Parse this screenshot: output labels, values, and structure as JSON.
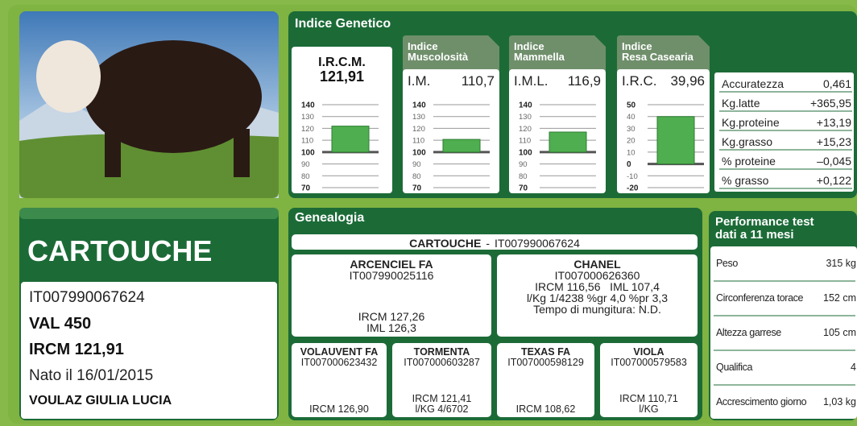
{
  "profile": {
    "name": "CARTOUCHE",
    "id": "IT007990067624",
    "val": "VAL 450",
    "ircm": "IRCM 121,91",
    "born": "Nato il 16/01/2015",
    "owner": "VOULAZ GIULIA LUCIA"
  },
  "indice_genetico": {
    "title": "Indice Genetico",
    "indices": [
      {
        "label": "I.R.C.M.",
        "value": {
          "value": 121.91,
          "label": "121,91"
        },
        "baseline": 100,
        "ylim": [
          70,
          140
        ],
        "yticks": [
          140,
          130,
          120,
          110,
          100,
          90,
          80,
          70
        ]
      },
      {
        "title": [
          "Indice",
          "Muscolosità"
        ],
        "label": "I.M.",
        "value": {
          "value": 110.7,
          "label": "110,7"
        },
        "baseline": 100,
        "ylim": [
          70,
          140
        ],
        "yticks": [
          140,
          130,
          120,
          110,
          100,
          90,
          80,
          70
        ]
      },
      {
        "title": [
          "Indice",
          "Mammella"
        ],
        "label": "I.M.L.",
        "value": {
          "value": 116.9,
          "label": "116,9"
        },
        "baseline": 100,
        "ylim": [
          70,
          140
        ],
        "yticks": [
          140,
          130,
          120,
          110,
          100,
          90,
          80,
          70
        ]
      },
      {
        "title": [
          "Indice",
          "Resa Casearia"
        ],
        "label": "I.R.C.",
        "value": {
          "value": 39.96,
          "label": "39,96"
        },
        "baseline": 0,
        "ylim": [
          -20,
          50
        ],
        "yticks": [
          50,
          40,
          30,
          20,
          10,
          0,
          -10,
          -20
        ]
      }
    ],
    "table": [
      [
        "Accuratezza",
        "0,461"
      ],
      [
        "Kg.latte",
        "+365,95"
      ],
      [
        "Kg.proteine",
        "+13,19"
      ],
      [
        "Kg.grasso",
        "+15,23"
      ],
      [
        "% proteine",
        "–0,045"
      ],
      [
        "% grasso",
        "+0,122"
      ]
    ]
  },
  "genealogia": {
    "title": "Genealogia",
    "subject": {
      "name": "CARTOUCHE",
      "separator": "-",
      "id": "IT007990067624"
    },
    "parents": [
      {
        "name": "ARCENCIEL FA",
        "id": "IT007990025116",
        "details": [
          "IRCM 127,26",
          "IML 126,3"
        ]
      },
      {
        "name": "CHANEL",
        "id": "IT007000626360",
        "details": [
          "IRCM 116,56   IML 107,4",
          "l/Kg 1/4238 %gr 4,0 %pr 3,3",
          "Tempo di mungitura: N.D."
        ]
      }
    ],
    "grandparents": [
      {
        "name": "VOLAUVENT FA",
        "id": "IT007000623432",
        "details": [
          "IRCM 126,90"
        ]
      },
      {
        "name": "TORMENTA",
        "id": "IT007000603287",
        "details": [
          "IRCM 121,41",
          "l/KG 4/6702"
        ]
      },
      {
        "name": "TEXAS FA",
        "id": "IT007000598129",
        "details": [
          "IRCM 108,62"
        ]
      },
      {
        "name": "VIOLA",
        "id": "IT007000579583",
        "details": [
          "IRCM 110,71",
          "l/KG"
        ]
      }
    ]
  },
  "performance": {
    "title": [
      "Performance test",
      "dati a 11 mesi"
    ],
    "rows": [
      [
        "Peso",
        "315 kg"
      ],
      [
        "Circonferenza torace",
        "152 cm"
      ],
      [
        "Altezza garrese",
        "105 cm"
      ],
      [
        "Qualifica",
        "4"
      ],
      [
        "Accrescimento giorno",
        "1,03 kg"
      ]
    ]
  }
}
